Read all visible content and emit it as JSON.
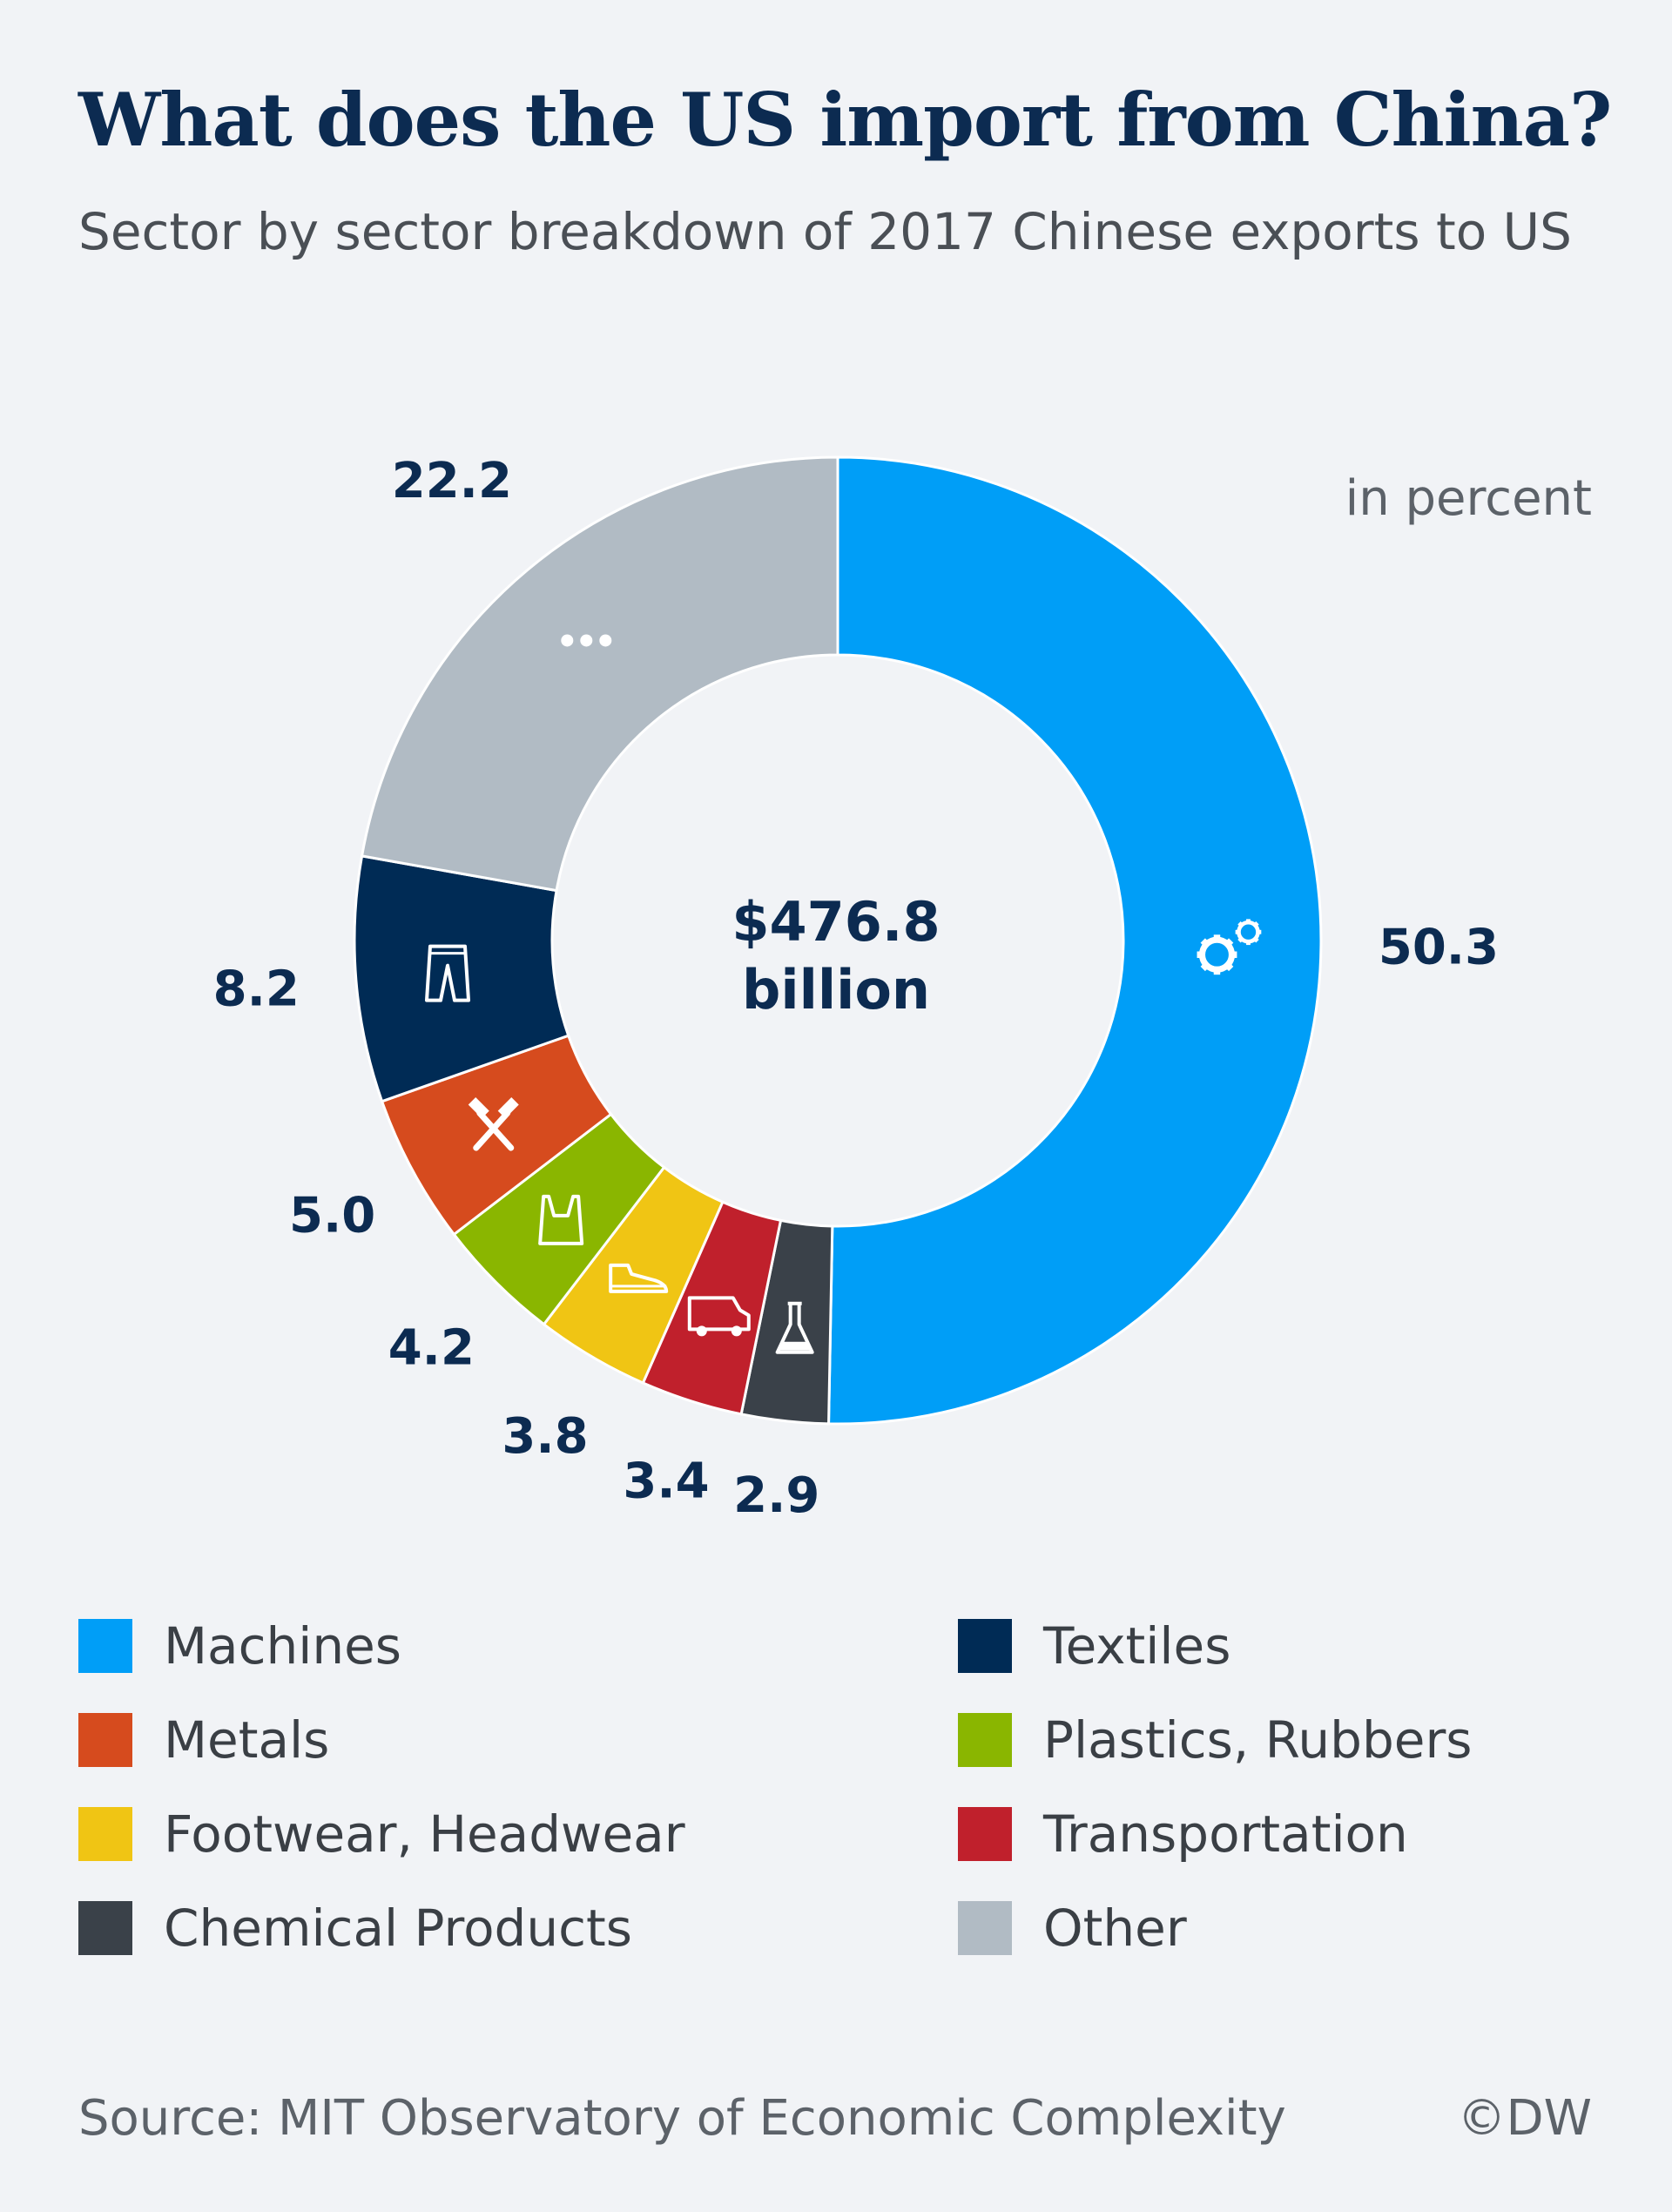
{
  "header": {
    "title": "What does the US import from China?",
    "subtitle": "Sector by sector breakdown of 2017 Chinese exports to US",
    "unit_note": "in percent"
  },
  "chart_data": {
    "type": "pie",
    "variant": "donut",
    "categories": [
      "Machines",
      "Chemical Products",
      "Transportation",
      "Footwear, Headwear",
      "Plastics, Rubbers",
      "Metals",
      "Textiles",
      "Other"
    ],
    "values": [
      50.3,
      2.9,
      3.4,
      3.8,
      4.2,
      5.0,
      8.2,
      22.2
    ],
    "value_labels": [
      "50.3",
      "2.9",
      "3.4",
      "3.8",
      "4.2",
      "5.0",
      "8.2",
      "22.2"
    ],
    "colors": [
      "#009ef7",
      "#3a4149",
      "#c0202c",
      "#f0c514",
      "#8ab600",
      "#d64b1e",
      "#002b55",
      "#b1bbc4"
    ],
    "icons": [
      "gears-icon",
      "flask-icon",
      "van-icon",
      "shoe-icon",
      "bag-icon",
      "hammers-icon",
      "trousers-icon",
      "ellipsis-icon"
    ],
    "center_label": [
      "$476.8",
      "billion"
    ],
    "legend_position": "bottom"
  },
  "legend": {
    "items": [
      {
        "label": "Machines",
        "color": "#009ef7"
      },
      {
        "label": "Textiles",
        "color": "#002b55"
      },
      {
        "label": "Metals",
        "color": "#d64b1e"
      },
      {
        "label": "Plastics, Rubbers",
        "color": "#8ab600"
      },
      {
        "label": "Footwear, Headwear",
        "color": "#f0c514"
      },
      {
        "label": "Transportation",
        "color": "#c0202c"
      },
      {
        "label": "Chemical Products",
        "color": "#3a4149"
      },
      {
        "label": "Other",
        "color": "#b1bbc4"
      }
    ]
  },
  "footer": {
    "source": "Source: MIT Observatory of Economic Complexity",
    "credit": "©DW"
  }
}
